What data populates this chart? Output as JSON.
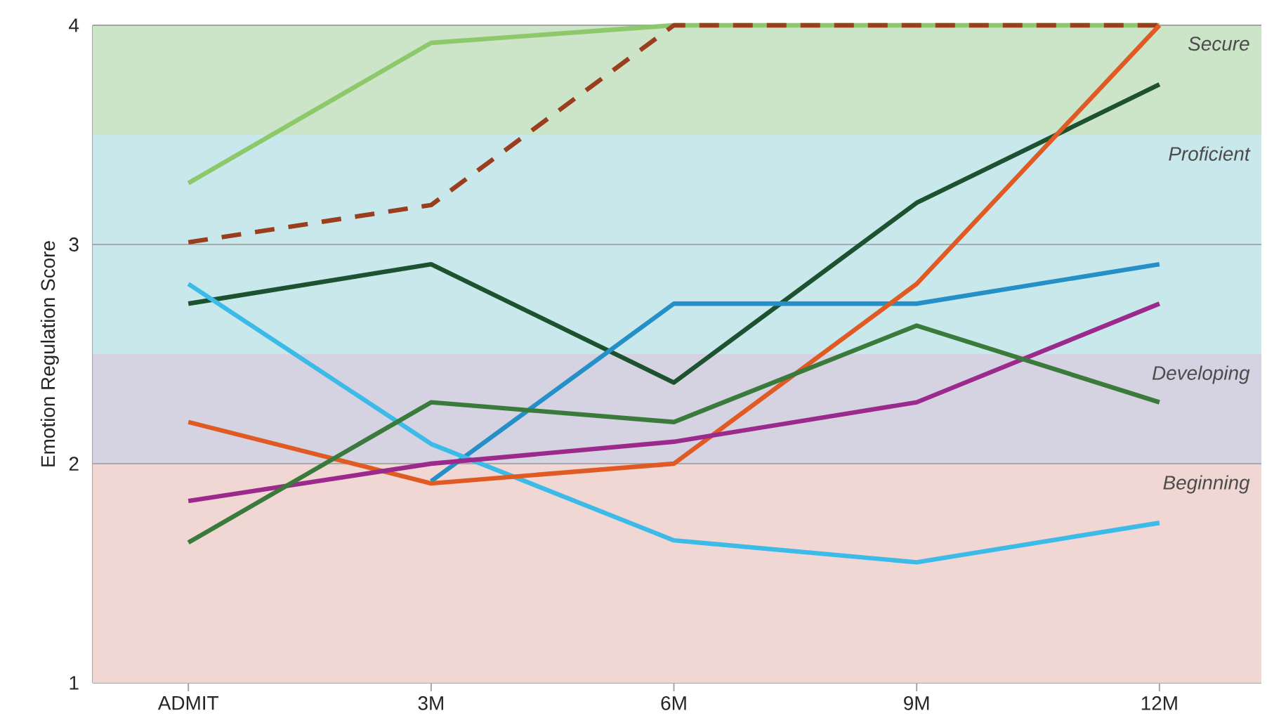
{
  "chart_data": {
    "type": "line",
    "ylabel": "Emotion Regulation Score",
    "categories": [
      "ADMIT",
      "3M",
      "6M",
      "9M",
      "12M"
    ],
    "ylim": [
      1,
      4
    ],
    "yticks": [
      1,
      2,
      3,
      4
    ],
    "grid": "y",
    "marker": "none",
    "bands": [
      {
        "axis": "y",
        "from": 1,
        "to": 2,
        "label": "Beginning",
        "color": "#f0d7d3"
      },
      {
        "axis": "y",
        "from": 2,
        "to": 2.5,
        "label": "Developing",
        "color": "#d5d2e2"
      },
      {
        "axis": "y",
        "from": 2.5,
        "to": 3.5,
        "label": "Proficient",
        "color": "#c9e8ec"
      },
      {
        "axis": "y",
        "from": 3.5,
        "to": 4,
        "label": "Secure",
        "color": "#cce4c8"
      }
    ],
    "series": [
      {
        "color": "#8dc86a",
        "values": [
          3.28,
          3.92,
          4,
          4,
          4
        ]
      },
      {
        "color": "#9a3e1e",
        "line_style": "dashed",
        "values": [
          3.01,
          3.18,
          4,
          4,
          4
        ]
      },
      {
        "color": "#1c5230",
        "values": [
          2.73,
          2.91,
          2.37,
          3.19,
          3.73
        ]
      },
      {
        "color": "#2590c8",
        "values": [
          null,
          1.92,
          2.73,
          2.73,
          2.91
        ]
      },
      {
        "color": "#3dbbe8",
        "values": [
          2.82,
          2.09,
          1.65,
          1.55,
          1.73
        ]
      },
      {
        "color": "#e05a23",
        "values": [
          2.19,
          1.91,
          2.0,
          2.82,
          4
        ]
      },
      {
        "color": "#9b2a8c",
        "values": [
          1.83,
          2.0,
          2.1,
          2.28,
          2.73
        ]
      },
      {
        "color": "#3a7a3a",
        "values": [
          1.64,
          2.28,
          2.19,
          2.63,
          2.28
        ]
      }
    ]
  }
}
